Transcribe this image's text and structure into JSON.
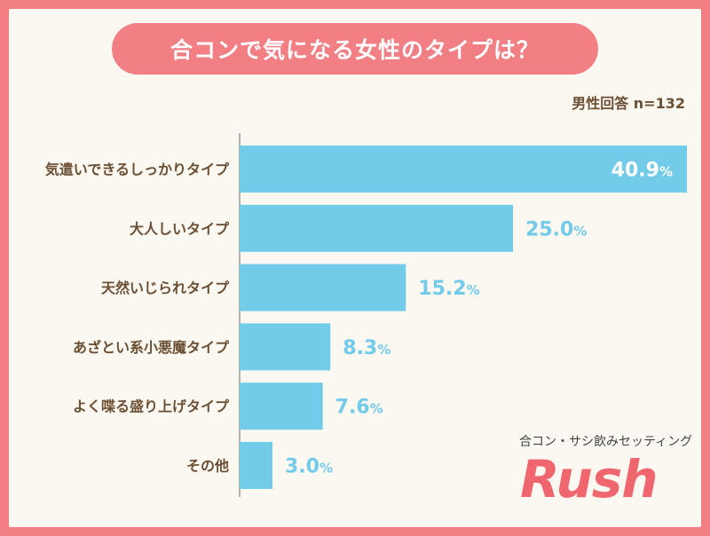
{
  "title": "合コンで気になる女性のタイプは？",
  "sample_note": "男性回答 n=132",
  "brand": {
    "subtitle": "合コン・サシ飲みセッティング",
    "name": "Rush"
  },
  "colors": {
    "frame": "#f27f84",
    "bar": "#72cbe9",
    "label": "#6b4f34",
    "value_outside": "#72cbe9",
    "value_inside": "#ffffff"
  },
  "chart_data": {
    "type": "bar",
    "orientation": "horizontal",
    "categories": [
      "気遣いできるしっかりタイプ",
      "大人しいタイプ",
      "天然いじられタイプ",
      "あざとい系小悪魔タイプ",
      "よく喋る盛り上げタイプ",
      "その他"
    ],
    "values": [
      40.9,
      25.0,
      15.2,
      8.3,
      7.6,
      3.0
    ],
    "value_labels": [
      "40.9",
      "25.0",
      "15.2",
      "8.3",
      "7.6",
      "3.0"
    ],
    "unit": "%",
    "xlim": [
      0,
      40.9
    ]
  }
}
